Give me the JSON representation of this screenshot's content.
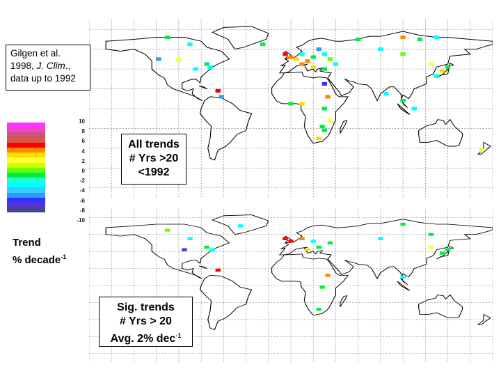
{
  "citation": {
    "line1": "Gilgen et al.",
    "line2_prefix": "1998, ",
    "line2_journal": "J. Clim",
    "line2_suffix": ".,",
    "line3": "data up to 1992"
  },
  "legend": {
    "ticks": [
      "10",
      "8",
      "6",
      "4",
      "2",
      "0",
      "-2",
      "-4",
      "-6",
      "-8",
      "-10"
    ],
    "colors": [
      "#ff33ff",
      "#ee44cc",
      "#cc5577",
      "#dd5544",
      "#ff0000",
      "#ff8800",
      "#ffdd00",
      "#ffff33",
      "#ccff00",
      "#66ff00",
      "#00ee44",
      "#22ffcc",
      "#00ffff",
      "#33ccff",
      "#3399ff",
      "#3333ff",
      "#5533cc",
      "#444499"
    ],
    "title_line1": "Trend",
    "title_line2": "% decade",
    "title_sup": "-1"
  },
  "top_panel": {
    "line1": "All trends",
    "line2": "# Yrs >20",
    "line3": "<1992"
  },
  "bottom_panel": {
    "line1": "Sig. trends",
    "line2": "# Yrs > 20",
    "line3": "Avg. 2% dec",
    "line3_sup": "-1"
  },
  "map_data": {
    "top_stations": [
      {
        "lon": -110,
        "lat": 72,
        "color": "#00ee44"
      },
      {
        "lon": -90,
        "lat": 65,
        "color": "#00ffff"
      },
      {
        "lon": -118,
        "lat": 50,
        "color": "#3399ff"
      },
      {
        "lon": -100,
        "lat": 49,
        "color": "#ffff33"
      },
      {
        "lon": -85,
        "lat": 40,
        "color": "#00ffff"
      },
      {
        "lon": -75,
        "lat": 45,
        "color": "#00ee44"
      },
      {
        "lon": -72,
        "lat": 42,
        "color": "#00ffff"
      },
      {
        "lon": -65,
        "lat": 18,
        "color": "#ff0000"
      },
      {
        "lon": -62,
        "lat": 12,
        "color": "#3399ff"
      },
      {
        "lon": -25,
        "lat": 65,
        "color": "#00ee44"
      },
      {
        "lon": -5,
        "lat": 55,
        "color": "#ff0000"
      },
      {
        "lon": 0,
        "lat": 52,
        "color": "#ff8800"
      },
      {
        "lon": 5,
        "lat": 50,
        "color": "#ffdd00"
      },
      {
        "lon": 10,
        "lat": 55,
        "color": "#00ffff"
      },
      {
        "lon": 15,
        "lat": 48,
        "color": "#ff8800"
      },
      {
        "lon": 20,
        "lat": 52,
        "color": "#00ee44"
      },
      {
        "lon": 25,
        "lat": 60,
        "color": "#3399ff"
      },
      {
        "lon": 30,
        "lat": 55,
        "color": "#00ffff"
      },
      {
        "lon": 35,
        "lat": 50,
        "color": "#66ff00"
      },
      {
        "lon": 10,
        "lat": 45,
        "color": "#ff8800"
      },
      {
        "lon": 20,
        "lat": 42,
        "color": "#ffdd00"
      },
      {
        "lon": 30,
        "lat": 40,
        "color": "#00ee44"
      },
      {
        "lon": 40,
        "lat": 45,
        "color": "#00ffff"
      },
      {
        "lon": 60,
        "lat": 70,
        "color": "#00ee44"
      },
      {
        "lon": 100,
        "lat": 72,
        "color": "#ff8800"
      },
      {
        "lon": 115,
        "lat": 70,
        "color": "#00ee44"
      },
      {
        "lon": 130,
        "lat": 72,
        "color": "#00ffff"
      },
      {
        "lon": 80,
        "lat": 60,
        "color": "#00ffff"
      },
      {
        "lon": 100,
        "lat": 55,
        "color": "#66ff00"
      },
      {
        "lon": 125,
        "lat": 45,
        "color": "#ffff33"
      },
      {
        "lon": 135,
        "lat": 38,
        "color": "#ffdd00"
      },
      {
        "lon": 140,
        "lat": 42,
        "color": "#00ee44"
      },
      {
        "lon": 130,
        "lat": 33,
        "color": "#00ffff"
      },
      {
        "lon": 30,
        "lat": 25,
        "color": "#3333ff"
      },
      {
        "lon": 33,
        "lat": 12,
        "color": "#ff8800"
      },
      {
        "lon": 0,
        "lat": 5,
        "color": "#00ee44"
      },
      {
        "lon": 10,
        "lat": 5,
        "color": "#ffdd00"
      },
      {
        "lon": 30,
        "lat": 0,
        "color": "#00ee44"
      },
      {
        "lon": 28,
        "lat": -18,
        "color": "#00ee44"
      },
      {
        "lon": 30,
        "lat": -22,
        "color": "#00ee44"
      },
      {
        "lon": 35,
        "lat": -12,
        "color": "#ffff33"
      },
      {
        "lon": 25,
        "lat": -30,
        "color": "#ffdd00"
      },
      {
        "lon": 170,
        "lat": -42,
        "color": "#ffff33"
      },
      {
        "lon": 110,
        "lat": 0,
        "color": "#00ffff"
      },
      {
        "lon": 100,
        "lat": 8,
        "color": "#00ee44"
      },
      {
        "lon": 85,
        "lat": 15,
        "color": "#00ffff"
      }
    ],
    "bottom_stations": [
      {
        "lon": -110,
        "lat": 65,
        "color": "#66ff00"
      },
      {
        "lon": -90,
        "lat": 55,
        "color": "#00ffff"
      },
      {
        "lon": -95,
        "lat": 42,
        "color": "#5533cc"
      },
      {
        "lon": -75,
        "lat": 45,
        "color": "#00ee44"
      },
      {
        "lon": -70,
        "lat": 42,
        "color": "#00ffff"
      },
      {
        "lon": -65,
        "lat": 18,
        "color": "#ff0000"
      },
      {
        "lon": -45,
        "lat": 70,
        "color": "#00ffff"
      },
      {
        "lon": -5,
        "lat": 55,
        "color": "#ff0000"
      },
      {
        "lon": 0,
        "lat": 52,
        "color": "#ff0000"
      },
      {
        "lon": 10,
        "lat": 55,
        "color": "#ff8800"
      },
      {
        "lon": 20,
        "lat": 52,
        "color": "#00ffff"
      },
      {
        "lon": 25,
        "lat": 45,
        "color": "#00ee44"
      },
      {
        "lon": 15,
        "lat": 42,
        "color": "#ffdd00"
      },
      {
        "lon": 35,
        "lat": 50,
        "color": "#00ee44"
      },
      {
        "lon": 100,
        "lat": 72,
        "color": "#00ee44"
      },
      {
        "lon": 125,
        "lat": 60,
        "color": "#00ee44"
      },
      {
        "lon": 80,
        "lat": 55,
        "color": "#00ffff"
      },
      {
        "lon": 125,
        "lat": 45,
        "color": "#ffff33"
      },
      {
        "lon": 135,
        "lat": 38,
        "color": "#00ee44"
      },
      {
        "lon": 140,
        "lat": 42,
        "color": "#00ee44"
      },
      {
        "lon": 33,
        "lat": 12,
        "color": "#ff8800"
      },
      {
        "lon": 28,
        "lat": -2,
        "color": "#00ee44"
      },
      {
        "lon": 25,
        "lat": -28,
        "color": "#00ee44"
      },
      {
        "lon": 100,
        "lat": 10,
        "color": "#00ffff"
      }
    ]
  }
}
